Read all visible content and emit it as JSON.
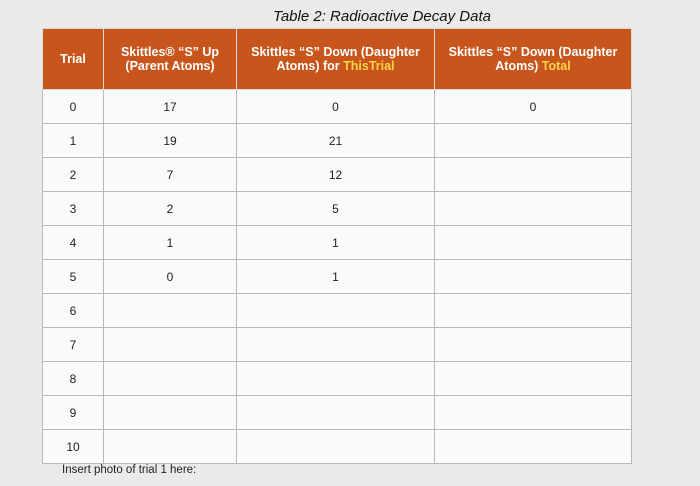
{
  "title": "Table 2: Radioactive Decay Data",
  "table": {
    "columns": [
      {
        "text": "Trial"
      },
      {
        "text": "Skittles® “S” Up (Parent Atoms)"
      },
      {
        "text": "Skittles “S” Down (Daughter Atoms) for ",
        "highlight": "ThisTrial"
      },
      {
        "text": "Skittles “S” Down (Daughter Atoms) ",
        "highlight": "Total"
      }
    ],
    "rows": [
      [
        0,
        17,
        0,
        0
      ],
      [
        1,
        19,
        21
      ],
      [
        2,
        7,
        12
      ],
      [
        3,
        2,
        5
      ],
      [
        4,
        1,
        1
      ],
      [
        5,
        0,
        1
      ],
      [
        6
      ],
      [
        7
      ],
      [
        8
      ],
      [
        9
      ],
      [
        10
      ]
    ]
  },
  "footer": "Insert photo of trial 1 here:"
}
